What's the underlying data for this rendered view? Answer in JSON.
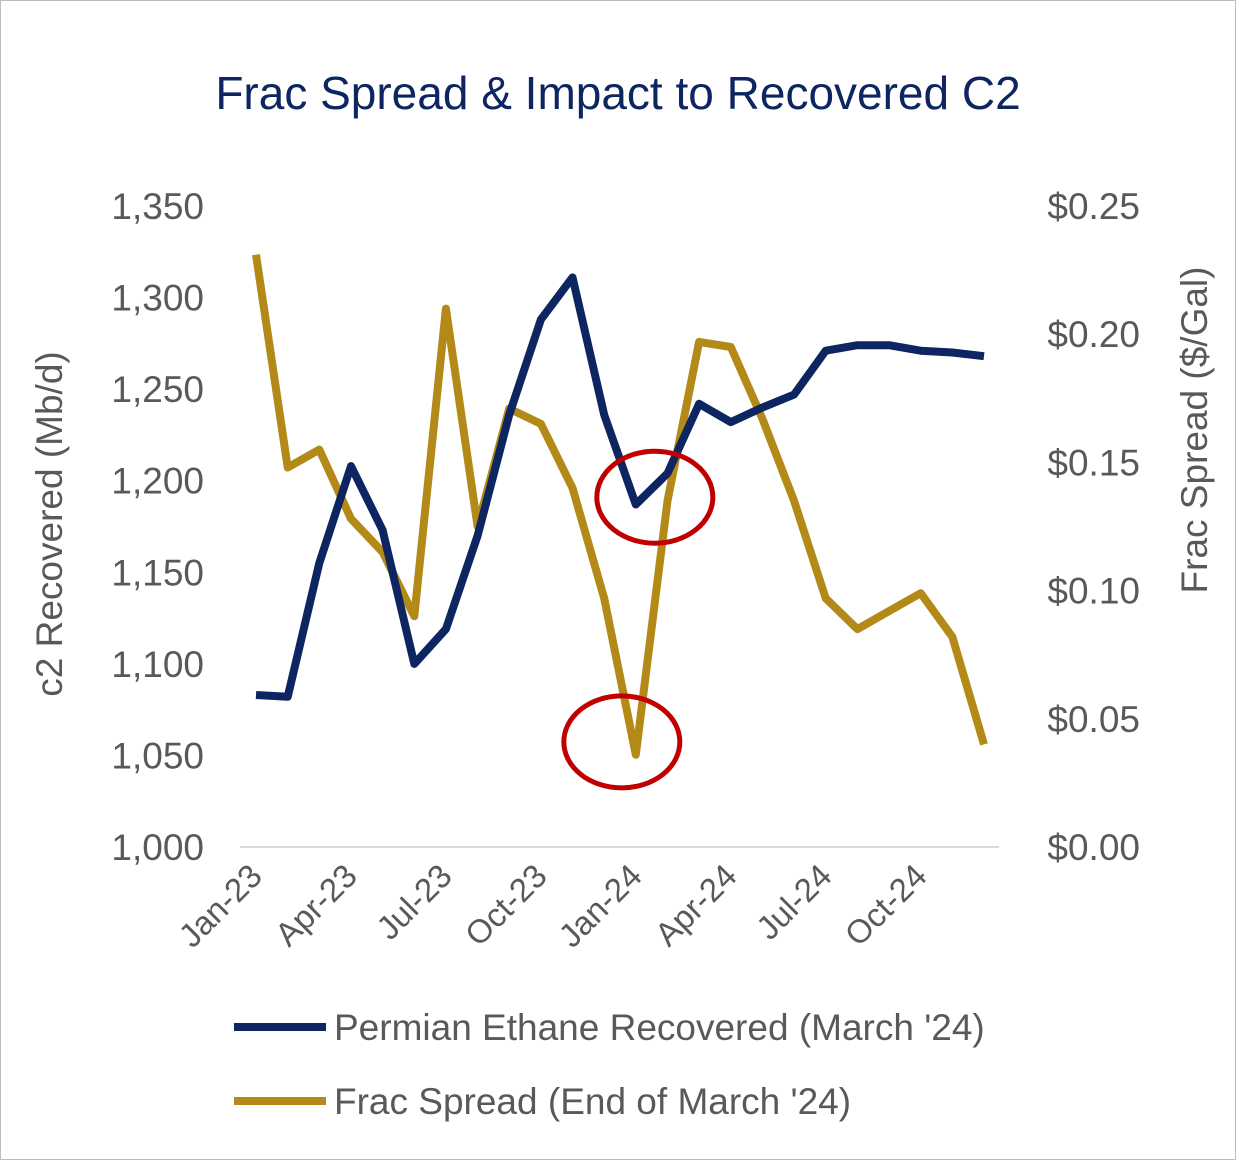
{
  "title": "Frac Spread & Impact to Recovered C2",
  "colors": {
    "ethane": "#0d2561",
    "frac": "#b38a17",
    "annotation": "#c00000",
    "axis_text": "#595959",
    "axis_line": "#d9d9d9"
  },
  "chart_data": {
    "type": "line",
    "title": "Frac Spread & Impact to Recovered C2",
    "x": [
      "Jan-23",
      "Feb-23",
      "Mar-23",
      "Apr-23",
      "May-23",
      "Jun-23",
      "Jul-23",
      "Aug-23",
      "Sep-23",
      "Oct-23",
      "Nov-23",
      "Dec-23",
      "Jan-24",
      "Feb-24",
      "Mar-24",
      "Apr-24",
      "May-24",
      "Jun-24",
      "Jul-24",
      "Aug-24",
      "Sep-24",
      "Oct-24",
      "Nov-24",
      "Dec-24"
    ],
    "x_tick_labels": [
      "Jan-23",
      "Apr-23",
      "Jul-23",
      "Oct-23",
      "Jan-24",
      "Apr-24",
      "Jul-24",
      "Oct-24"
    ],
    "ylabel_left": "c2 Recovered (Mb/d)",
    "ylabel_right": "Frac Spread ($/Gal)",
    "ylim_left": [
      1000,
      1350
    ],
    "ylim_right": [
      0.0,
      0.25
    ],
    "y_ticks_left": [
      "1,000",
      "1,050",
      "1,100",
      "1,150",
      "1,200",
      "1,250",
      "1,300",
      "1,350"
    ],
    "y_ticks_right": [
      "$0.00",
      "$0.05",
      "$0.10",
      "$0.15",
      "$0.20",
      "$0.25"
    ],
    "grid": false,
    "legend_position": "bottom",
    "series": [
      {
        "name": "Permian Ethane Recovered (March '24)",
        "axis": "left",
        "values": [
          1083,
          1082,
          1155,
          1208,
          1173,
          1100,
          1119,
          1170,
          1236,
          1288,
          1311,
          1236,
          1187,
          1204,
          1242,
          1232,
          1240,
          1247,
          1271,
          1274,
          1274,
          1271,
          1270,
          1268
        ]
      },
      {
        "name": "Frac Spread (End of March '24)",
        "axis": "right",
        "values": [
          0.231,
          0.148,
          0.155,
          0.128,
          0.115,
          0.09,
          0.21,
          0.125,
          0.171,
          0.165,
          0.14,
          0.097,
          0.036,
          0.135,
          0.197,
          0.195,
          0.167,
          0.135,
          0.097,
          0.085,
          0.092,
          0.099,
          0.082,
          0.04
        ]
      }
    ],
    "annotations": [
      {
        "type": "circle",
        "series": "Permian Ethane Recovered (March '24)",
        "x": "Jan-24",
        "y": 1191
      },
      {
        "type": "circle",
        "series": "Frac Spread (End of March '24)",
        "x": "Jan-24",
        "y": 0.041
      }
    ]
  }
}
